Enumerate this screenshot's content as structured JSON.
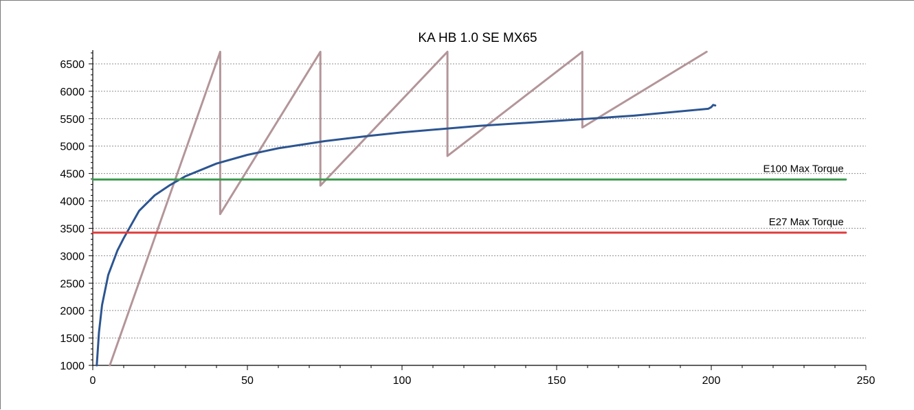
{
  "chart_data": {
    "type": "line",
    "title": "KA HB 1.0 SE MX65",
    "xlabel": "",
    "ylabel": "",
    "xlim": [
      0,
      250
    ],
    "ylim": [
      1000,
      6750
    ],
    "xticks": [
      0,
      50,
      100,
      150,
      200,
      250
    ],
    "yticks": [
      1000,
      1500,
      2000,
      2500,
      3000,
      3500,
      4000,
      4500,
      5000,
      5500,
      6000,
      6500
    ],
    "grid": true,
    "legend": "none",
    "series": [
      {
        "color": "#b39599",
        "x": [
          5.5,
          41.2,
          41.2,
          73.6,
          73.6,
          114.7,
          114.7,
          158.3,
          158.3,
          198.5
        ],
        "values": [
          1000,
          6720,
          3760,
          6720,
          4280,
          6720,
          4820,
          6720,
          5340,
          6720
        ]
      },
      {
        "color": "#2c5591",
        "x": [
          1.3,
          2,
          3,
          5,
          8,
          10,
          15,
          20,
          25,
          30,
          40,
          50,
          60,
          75,
          90,
          100,
          125,
          150,
          175,
          199,
          200,
          200.6,
          201.3
        ],
        "values": [
          1000,
          1600,
          2100,
          2650,
          3100,
          3320,
          3820,
          4100,
          4290,
          4450,
          4680,
          4840,
          4960,
          5090,
          5190,
          5250,
          5370,
          5460,
          5555,
          5680,
          5710,
          5750,
          5740
        ]
      },
      {
        "name": "E100 Max Torque",
        "color": "#3c9a4e",
        "x": [
          0,
          243.5
        ],
        "values": [
          4390,
          4390
        ]
      },
      {
        "name": "E27 Max Torque",
        "color": "#e03c3c",
        "x": [
          0,
          243.5
        ],
        "values": [
          3420,
          3420
        ]
      }
    ],
    "annotations": [
      {
        "text": "E100 Max Torque",
        "x": 243.5,
        "y": 4390
      },
      {
        "text": "E27 Max Torque",
        "x": 243.5,
        "y": 3420
      }
    ]
  }
}
